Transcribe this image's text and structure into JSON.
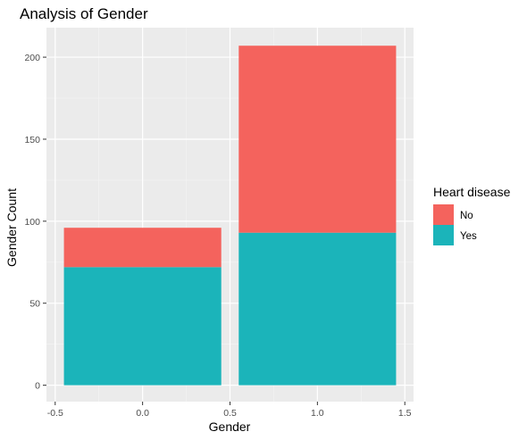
{
  "chart_data": {
    "type": "bar",
    "stacked": true,
    "title": "Analysis of Gender",
    "xlabel": "Gender",
    "ylabel": "Gender Count",
    "x": [
      0,
      1
    ],
    "xlim": [
      -0.55,
      1.55
    ],
    "ylim": [
      -10,
      218
    ],
    "xticks": [
      "-0.5",
      "0.0",
      "0.5",
      "1.0",
      "1.5"
    ],
    "yticks": [
      "0",
      "50",
      "100",
      "150",
      "200"
    ],
    "grid": true,
    "legend_placement": "right",
    "legend_title": "Heart disease",
    "series": [
      {
        "name": "Yes",
        "values": [
          72,
          93
        ],
        "color": "#1BB4BA"
      },
      {
        "name": "No",
        "values": [
          24,
          114
        ],
        "color": "#F4635D"
      }
    ],
    "legend_order": [
      "No",
      "Yes"
    ]
  }
}
